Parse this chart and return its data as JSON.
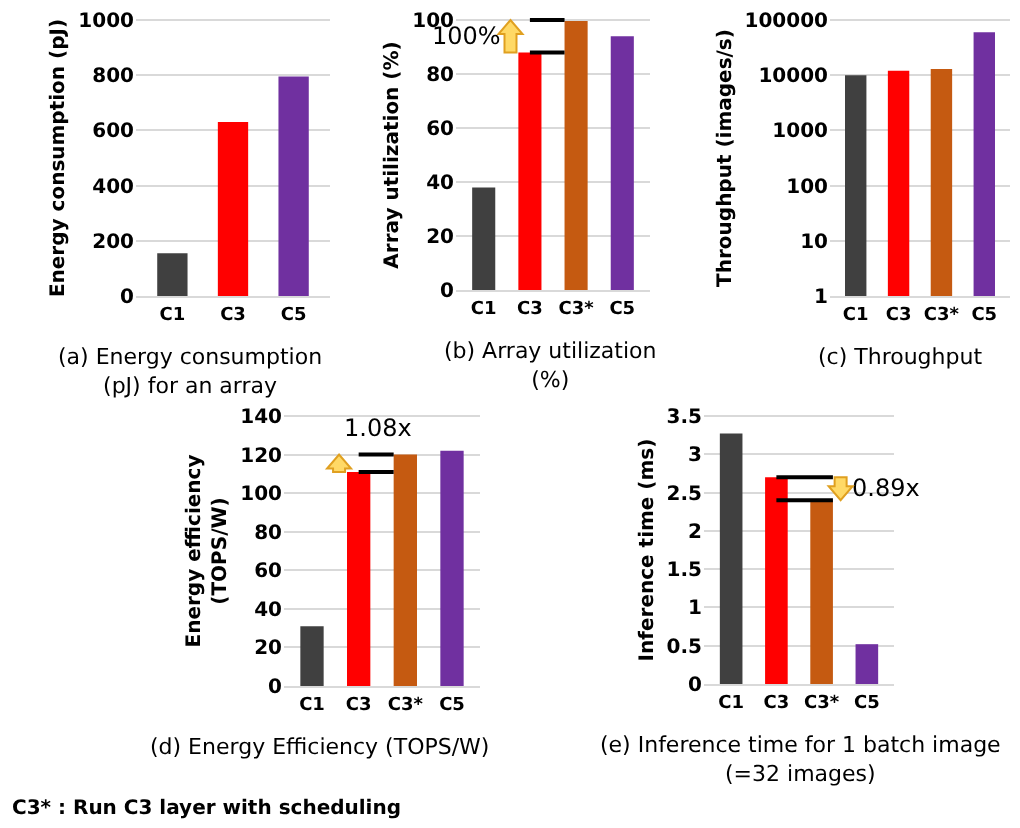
{
  "chart_data": [
    {
      "type": "bar",
      "title": "(a) Energy consumption (pJ) for an array",
      "ylabel": "Energy consumption (pJ)",
      "categories": [
        "C1",
        "C3",
        "C5"
      ],
      "values": [
        155,
        630,
        795
      ],
      "colors": [
        "#404040",
        "#ff0000",
        "#7030a0"
      ],
      "ylim": [
        0,
        1000
      ],
      "yticks": [
        0,
        200,
        400,
        600,
        800,
        1000
      ],
      "grid": "y"
    },
    {
      "type": "bar",
      "title": "(b) Array utilization (%)",
      "ylabel": "Array utilization (%)",
      "categories": [
        "C1",
        "C3",
        "C3*",
        "C5"
      ],
      "values": [
        38,
        88,
        100,
        94
      ],
      "colors": [
        "#404040",
        "#ff0000",
        "#c55a11",
        "#7030a0"
      ],
      "ylim": [
        0,
        100
      ],
      "yticks": [
        0,
        20,
        40,
        60,
        80,
        100
      ],
      "grid": "y",
      "annotations": [
        "100%"
      ]
    },
    {
      "type": "bar",
      "title": "(c) Throughput",
      "ylabel": "Throughput (images/s)",
      "categories": [
        "C1",
        "C3",
        "C3*",
        "C5"
      ],
      "values": [
        10000,
        12000,
        13000,
        60000
      ],
      "colors": [
        "#404040",
        "#ff0000",
        "#c55a11",
        "#7030a0"
      ],
      "ylim": [
        1,
        100000
      ],
      "yticks": [
        1,
        10,
        100,
        1000,
        10000,
        100000
      ],
      "log": true,
      "grid": "y"
    },
    {
      "type": "bar",
      "title": "(d) Energy Efficiency (TOPS/W)",
      "ylabel": "Energy efficiency (TOPS/W)",
      "categories": [
        "C1",
        "C3",
        "C3*",
        "C5"
      ],
      "values": [
        31,
        111,
        120,
        122
      ],
      "colors": [
        "#404040",
        "#ff0000",
        "#c55a11",
        "#7030a0"
      ],
      "ylim": [
        0,
        140
      ],
      "yticks": [
        0,
        20,
        40,
        60,
        80,
        100,
        120,
        140
      ],
      "grid": "y",
      "annotations": [
        "1.08x",
        "C3* : Run C3 layer with scheduling"
      ]
    },
    {
      "type": "bar",
      "title": "(e) Inference time for 1 batch image (=32 images)",
      "ylabel": "Inference time (ms)",
      "categories": [
        "C1",
        "C3",
        "C3*",
        "C5"
      ],
      "values": [
        3.27,
        2.7,
        2.4,
        0.52
      ],
      "colors": [
        "#404040",
        "#ff0000",
        "#c55a11",
        "#7030a0"
      ],
      "ylim": [
        0,
        3.5
      ],
      "yticks": [
        0,
        0.5,
        1,
        1.5,
        2,
        2.5,
        3,
        3.5
      ],
      "grid": "y",
      "annotations": [
        "0.89x"
      ]
    }
  ]
}
